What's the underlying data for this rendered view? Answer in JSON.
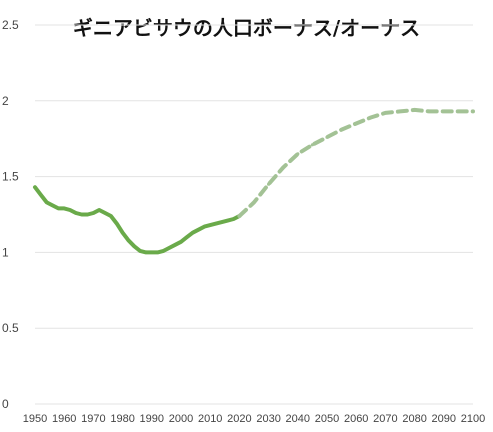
{
  "chart_data": {
    "type": "line",
    "title": "ギニアビサウの人口ボーナス/オーナス",
    "xlabel": "",
    "ylabel": "",
    "xlim": [
      1950,
      2100
    ],
    "ylim": [
      0,
      2.5
    ],
    "x_ticks": [
      "1950",
      "1960",
      "1970",
      "1980",
      "1990",
      "2000",
      "2010",
      "2020",
      "2030",
      "2040",
      "2050",
      "2060",
      "2070",
      "2080",
      "2090",
      "2100"
    ],
    "y_ticks": [
      "0",
      "0.5",
      "1",
      "1.5",
      "2",
      "2.5"
    ],
    "grid": true,
    "legend": "none",
    "series": [
      {
        "style": "solid",
        "color": "#6aaa4a",
        "x": [
          1950,
          1952,
          1954,
          1956,
          1958,
          1960,
          1962,
          1964,
          1966,
          1968,
          1970,
          1972,
          1974,
          1976,
          1978,
          1980,
          1982,
          1984,
          1986,
          1988,
          1990,
          1992,
          1994,
          1996,
          1998,
          2000,
          2002,
          2004,
          2006,
          2008,
          2010,
          2012,
          2014,
          2016,
          2018,
          2020
        ],
        "y": [
          1.43,
          1.38,
          1.33,
          1.31,
          1.29,
          1.29,
          1.28,
          1.26,
          1.25,
          1.25,
          1.26,
          1.28,
          1.26,
          1.24,
          1.19,
          1.13,
          1.08,
          1.04,
          1.01,
          1.0,
          1.0,
          1.0,
          1.01,
          1.03,
          1.05,
          1.07,
          1.1,
          1.13,
          1.15,
          1.17,
          1.18,
          1.19,
          1.2,
          1.21,
          1.22,
          1.24
        ]
      },
      {
        "style": "dashed",
        "color": "#a3c295",
        "x": [
          2020,
          2025,
          2030,
          2035,
          2040,
          2045,
          2050,
          2055,
          2060,
          2065,
          2070,
          2075,
          2080,
          2085,
          2090,
          2095,
          2100
        ],
        "y": [
          1.24,
          1.33,
          1.45,
          1.56,
          1.65,
          1.71,
          1.76,
          1.81,
          1.85,
          1.89,
          1.92,
          1.93,
          1.94,
          1.93,
          1.93,
          1.93,
          1.93
        ]
      }
    ]
  }
}
